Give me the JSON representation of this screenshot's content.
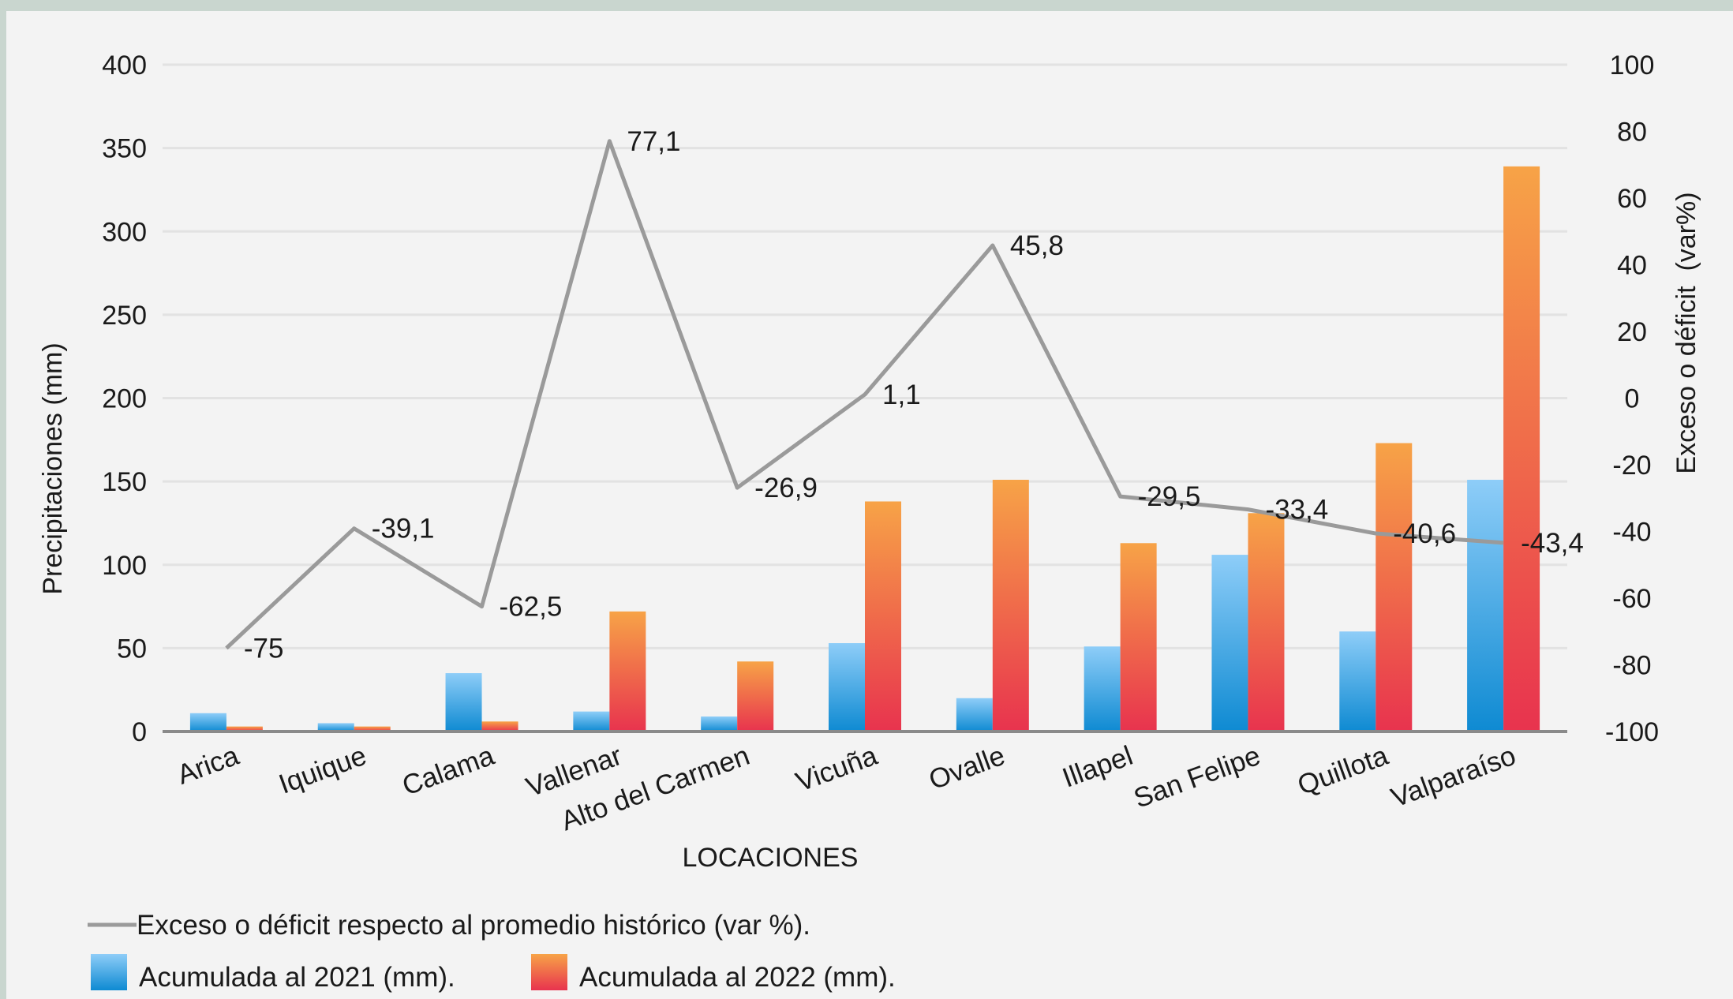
{
  "chart_data": {
    "type": "bar",
    "categories": [
      "Arica",
      "Iquique",
      "Calama",
      "Vallenar",
      "Alto del Carmen",
      "Vicuña",
      "Ovalle",
      "Illapel",
      "San Felipe",
      "Quillota",
      "Valparaíso"
    ],
    "series": [
      {
        "name": "Acumulada al 2021 (mm).",
        "axis": "left",
        "type": "bar",
        "color_top": "#8ecdf8",
        "color_bottom": "#0e8ad2",
        "values": [
          11,
          5,
          35,
          12,
          9,
          53,
          20,
          51,
          106,
          60,
          151
        ]
      },
      {
        "name": "Acumulada al 2022 (mm).",
        "axis": "left",
        "type": "bar",
        "color_top": "#f7a347",
        "color_bottom": "#e8334e",
        "values": [
          3,
          3,
          6,
          72,
          42,
          138,
          151,
          113,
          131,
          173,
          339
        ]
      },
      {
        "name": "Exceso o déficit respecto al promedio histórico (var %).",
        "axis": "right",
        "type": "line",
        "color": "#9a9a9a",
        "values": [
          -75,
          -39.1,
          -62.5,
          77.1,
          -26.9,
          1.1,
          45.8,
          -29.5,
          -33.4,
          -40.6,
          -43.4
        ],
        "labels": [
          "-75",
          "-39,1",
          "-62,5",
          "77,1",
          "-26,9",
          "1,1",
          "45,8",
          "-29,5",
          "-33,4",
          "-40,6",
          "-43,4"
        ]
      }
    ],
    "xlabel": "LOCACIONES",
    "ylabel": "Precipitaciones (mm)",
    "y2label": "Exceso o déficit  (var%)",
    "ylim": [
      0,
      400
    ],
    "yticks": [
      "0",
      "50",
      "100",
      "150",
      "200",
      "250",
      "300",
      "350",
      "400"
    ],
    "y2lim": [
      -100,
      100
    ],
    "y2ticks": [
      "-100",
      "-80",
      "-60",
      "-40",
      "-20",
      "0",
      "20",
      "40",
      "60",
      "80",
      "100"
    ],
    "grid": true,
    "legend_position": "bottom-left"
  }
}
